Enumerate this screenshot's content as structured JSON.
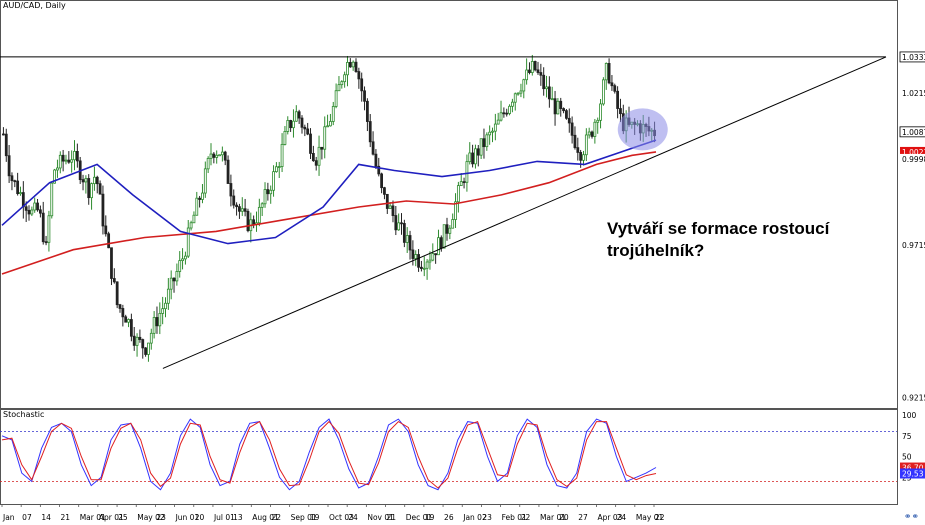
{
  "header": {
    "symbol_label": "AUD/CAD, Daily"
  },
  "indicator_panel": {
    "label": "Stochastic"
  },
  "annotation": {
    "line1": "Vytváří se formace rostoucí",
    "line2": "trojúhelník?"
  },
  "icons": {
    "corner": "link-icon"
  },
  "colors": {
    "bull_candle": "#2e8b2e",
    "bear_candle": "#222222",
    "sma_fast": "#1f1fbf",
    "sma_slow": "#d21f1f",
    "stoch_k": "#3333ff",
    "stoch_d": "#e02020",
    "highlight": "#8a8ae6",
    "price_badge": "#000000",
    "ma_badge": "#e01010"
  },
  "chart_data": [
    {
      "type": "candlestick",
      "title": "AUD/CAD, Daily",
      "ylim": [
        0.918,
        1.052
      ],
      "y_ticks": [
        1.0333,
        1.0215,
        1.0087,
        1.0021,
        0.9998,
        0.9715,
        0.9215
      ],
      "x_ticks": [
        "Jan",
        "07",
        "14",
        "21",
        "Mar 01",
        "Apr 01",
        "25",
        "May 02",
        "23",
        "Jun 01",
        "20",
        "Jul 01",
        "13",
        "Aug 01",
        "22",
        "Sep 01",
        "19",
        "Oct 03",
        "24",
        "Nov 01",
        "21",
        "Dec 01",
        "19",
        "26",
        "Jan 02",
        "23",
        "Feb 01",
        "22",
        "Mar 01",
        "20",
        "27",
        "Apr 03",
        "24",
        "May 01",
        "22"
      ],
      "price_badges": [
        {
          "label": "1.0333",
          "value": 1.0333,
          "style": "line"
        },
        {
          "label": "1.0215",
          "value": 1.0215,
          "style": "plain"
        },
        {
          "label": "1.0087",
          "value": 1.0087,
          "style": "price"
        },
        {
          "label": "1.0021",
          "value": 1.0021,
          "style": "ma"
        },
        {
          "label": "0.9998",
          "value": 0.9998,
          "style": "plain"
        },
        {
          "label": "0.9715",
          "value": 0.9715,
          "style": "plain"
        },
        {
          "label": "0.9215",
          "value": 0.9215,
          "style": "plain"
        }
      ],
      "resistance": 1.0333,
      "trendline": [
        [
          0.182,
          0.931
        ],
        [
          0.958,
          1.0333
        ]
      ],
      "trendline_units": "x as fraction of candle range, y in price",
      "highlight_center": [
        0.888,
        1.0095
      ],
      "candles_anchor_path": [
        [
          0,
          1.008
        ],
        [
          6,
          0.994
        ],
        [
          12,
          0.99
        ],
        [
          18,
          0.986
        ],
        [
          24,
          0.982
        ],
        [
          30,
          0.983
        ],
        [
          36,
          0.97
        ],
        [
          42,
          0.996
        ],
        [
          50,
          0.999
        ],
        [
          58,
          1.001
        ],
        [
          66,
          0.995
        ],
        [
          72,
          0.99
        ],
        [
          78,
          0.995
        ],
        [
          84,
          0.98
        ],
        [
          90,
          0.966
        ],
        [
          96,
          0.952
        ],
        [
          104,
          0.948
        ],
        [
          112,
          0.94
        ],
        [
          120,
          0.938
        ],
        [
          128,
          0.946
        ],
        [
          136,
          0.952
        ],
        [
          144,
          0.96
        ],
        [
          152,
          0.968
        ],
        [
          160,
          0.98
        ],
        [
          168,
          0.99
        ],
        [
          176,
          1.003
        ],
        [
          184,
          1.002
        ],
        [
          192,
          0.99
        ],
        [
          200,
          0.982
        ],
        [
          208,
          0.978
        ],
        [
          216,
          0.982
        ],
        [
          224,
          0.99
        ],
        [
          232,
          0.998
        ],
        [
          240,
          1.01
        ],
        [
          248,
          1.015
        ],
        [
          256,
          1.008
        ],
        [
          264,
          1.0
        ],
        [
          272,
          1.008
        ],
        [
          280,
          1.018
        ],
        [
          288,
          1.03
        ],
        [
          296,
          1.034
        ],
        [
          304,
          1.02
        ],
        [
          312,
          1.002
        ],
        [
          320,
          0.988
        ],
        [
          328,
          0.982
        ],
        [
          336,
          0.976
        ],
        [
          344,
          0.97
        ],
        [
          352,
          0.966
        ],
        [
          360,
          0.968
        ],
        [
          368,
          0.972
        ],
        [
          376,
          0.978
        ],
        [
          384,
          0.988
        ],
        [
          392,
          0.998
        ],
        [
          400,
          1.002
        ],
        [
          408,
          1.006
        ],
        [
          416,
          1.01
        ],
        [
          424,
          1.016
        ],
        [
          432,
          1.022
        ],
        [
          440,
          1.026
        ],
        [
          448,
          1.03
        ],
        [
          456,
          1.024
        ],
        [
          464,
          1.018
        ],
        [
          472,
          1.014
        ],
        [
          480,
          1.008
        ],
        [
          488,
          1.002
        ],
        [
          496,
          1.008
        ],
        [
          504,
          1.018
        ],
        [
          510,
          1.03
        ],
        [
          516,
          1.02
        ],
        [
          522,
          1.012
        ],
        [
          528,
          1.01
        ],
        [
          536,
          1.011
        ],
        [
          544,
          1.009
        ],
        [
          550,
          1.0087
        ]
      ],
      "sma_fast_path": [
        [
          0,
          0.978
        ],
        [
          40,
          0.992
        ],
        [
          80,
          0.998
        ],
        [
          110,
          0.988
        ],
        [
          150,
          0.976
        ],
        [
          190,
          0.972
        ],
        [
          230,
          0.974
        ],
        [
          270,
          0.984
        ],
        [
          300,
          0.998
        ],
        [
          330,
          0.996
        ],
        [
          370,
          0.994
        ],
        [
          410,
          0.996
        ],
        [
          450,
          0.999
        ],
        [
          490,
          0.998
        ],
        [
          520,
          1.002
        ],
        [
          550,
          1.006
        ]
      ],
      "sma_slow_path": [
        [
          0,
          0.962
        ],
        [
          60,
          0.97
        ],
        [
          120,
          0.974
        ],
        [
          180,
          0.976
        ],
        [
          240,
          0.98
        ],
        [
          300,
          0.984
        ],
        [
          340,
          0.986
        ],
        [
          380,
          0.985
        ],
        [
          420,
          0.988
        ],
        [
          460,
          0.992
        ],
        [
          500,
          0.998
        ],
        [
          530,
          1.001
        ],
        [
          550,
          1.0021
        ]
      ]
    },
    {
      "type": "line",
      "title": "Stochastic",
      "ylim": [
        0,
        100
      ],
      "y_ticks": [
        100,
        75,
        50,
        25
      ],
      "levels": [
        80,
        20
      ],
      "value_badges": [
        {
          "label": "36.70",
          "value": 36.7
        },
        {
          "label": "29.53",
          "value": 29.53
        }
      ],
      "series": [
        {
          "values": [
            75,
            70,
            30,
            20,
            60,
            85,
            90,
            80,
            40,
            15,
            25,
            70,
            88,
            90,
            60,
            20,
            10,
            30,
            75,
            95,
            85,
            40,
            15,
            20,
            65,
            90,
            92,
            60,
            25,
            10,
            20,
            55,
            85,
            95,
            70,
            35,
            12,
            18,
            50,
            88,
            95,
            80,
            40,
            15,
            10,
            30,
            70,
            92,
            90,
            50,
            20,
            30,
            75,
            95,
            85,
            40,
            15,
            12,
            30,
            80,
            95,
            90,
            50,
            20,
            25,
            30,
            36.7
          ]
        },
        {
          "values": [
            70,
            72,
            40,
            22,
            50,
            80,
            90,
            84,
            50,
            22,
            22,
            60,
            84,
            90,
            70,
            30,
            14,
            24,
            65,
            90,
            88,
            50,
            22,
            18,
            55,
            85,
            92,
            70,
            35,
            15,
            16,
            45,
            80,
            92,
            78,
            45,
            18,
            16,
            42,
            80,
            92,
            85,
            50,
            22,
            12,
            24,
            60,
            88,
            92,
            60,
            28,
            26,
            65,
            90,
            88,
            50,
            22,
            14,
            24,
            70,
            92,
            92,
            60,
            28,
            22,
            27,
            29.53
          ]
        }
      ]
    }
  ]
}
